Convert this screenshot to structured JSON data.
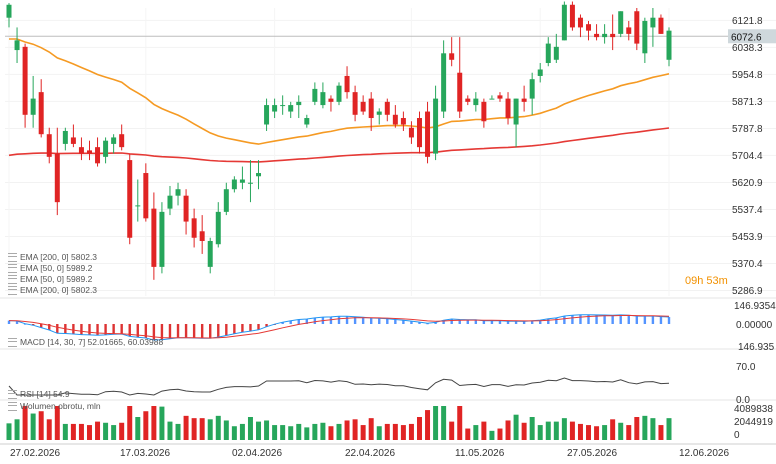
{
  "chart_data": {
    "type": "candlestick",
    "instrument_last_price": "6072.6",
    "countdown": "09h 53m",
    "price_axis_ticks": [
      "6121.8",
      "6038.3",
      "5954.8",
      "5871.3",
      "5787.8",
      "5704.4",
      "5620.9",
      "5537.4",
      "5453.9",
      "5370.4",
      "5286.9"
    ],
    "price_range": [
      5286.9,
      6160
    ],
    "date_labels": [
      "27.02.2026",
      "17.03.2026",
      "02.04.2026",
      "22.04.2026",
      "11.05.2026",
      "27.05.2026",
      "12.06.2026"
    ],
    "candles": [
      {
        "o": 6130,
        "h": 6175,
        "l": 6100,
        "c": 6170
      },
      {
        "o": 6030,
        "h": 6100,
        "l": 5990,
        "c": 6060
      },
      {
        "o": 6040,
        "h": 6050,
        "l": 5790,
        "c": 5830
      },
      {
        "o": 5830,
        "h": 5950,
        "l": 5790,
        "c": 5880
      },
      {
        "o": 5900,
        "h": 5940,
        "l": 5760,
        "c": 5770
      },
      {
        "o": 5770,
        "h": 5790,
        "l": 5680,
        "c": 5700
      },
      {
        "o": 5710,
        "h": 5790,
        "l": 5520,
        "c": 5560
      },
      {
        "o": 5740,
        "h": 5790,
        "l": 5720,
        "c": 5780
      },
      {
        "o": 5760,
        "h": 5800,
        "l": 5730,
        "c": 5740
      },
      {
        "o": 5730,
        "h": 5760,
        "l": 5690,
        "c": 5710
      },
      {
        "o": 5720,
        "h": 5750,
        "l": 5690,
        "c": 5710
      },
      {
        "o": 5730,
        "h": 5760,
        "l": 5670,
        "c": 5680
      },
      {
        "o": 5700,
        "h": 5760,
        "l": 5680,
        "c": 5750
      },
      {
        "o": 5740,
        "h": 5770,
        "l": 5710,
        "c": 5760
      },
      {
        "o": 5770,
        "h": 5800,
        "l": 5720,
        "c": 5730
      },
      {
        "o": 5690,
        "h": 5710,
        "l": 5430,
        "c": 5450
      },
      {
        "o": 5550,
        "h": 5630,
        "l": 5500,
        "c": 5550
      },
      {
        "o": 5650,
        "h": 5680,
        "l": 5500,
        "c": 5510
      },
      {
        "o": 5540,
        "h": 5590,
        "l": 5320,
        "c": 5360
      },
      {
        "o": 5360,
        "h": 5560,
        "l": 5340,
        "c": 5530
      },
      {
        "o": 5540,
        "h": 5610,
        "l": 5520,
        "c": 5580
      },
      {
        "o": 5580,
        "h": 5620,
        "l": 5550,
        "c": 5600
      },
      {
        "o": 5580,
        "h": 5600,
        "l": 5460,
        "c": 5500
      },
      {
        "o": 5510,
        "h": 5540,
        "l": 5420,
        "c": 5450
      },
      {
        "o": 5470,
        "h": 5520,
        "l": 5400,
        "c": 5440
      },
      {
        "o": 5360,
        "h": 5450,
        "l": 5340,
        "c": 5440
      },
      {
        "o": 5430,
        "h": 5560,
        "l": 5420,
        "c": 5530
      },
      {
        "o": 5530,
        "h": 5620,
        "l": 5520,
        "c": 5600
      },
      {
        "o": 5600,
        "h": 5640,
        "l": 5590,
        "c": 5630
      },
      {
        "o": 5620,
        "h": 5670,
        "l": 5600,
        "c": 5630
      },
      {
        "o": 5620,
        "h": 5690,
        "l": 5560,
        "c": 5620
      },
      {
        "o": 5640,
        "h": 5690,
        "l": 5600,
        "c": 5650
      },
      {
        "o": 5800,
        "h": 5880,
        "l": 5780,
        "c": 5860
      },
      {
        "o": 5840,
        "h": 5880,
        "l": 5820,
        "c": 5860
      },
      {
        "o": 5860,
        "h": 5890,
        "l": 5830,
        "c": 5860
      },
      {
        "o": 5840,
        "h": 5870,
        "l": 5820,
        "c": 5860
      },
      {
        "o": 5860,
        "h": 5890,
        "l": 5820,
        "c": 5870
      },
      {
        "o": 5800,
        "h": 5830,
        "l": 5790,
        "c": 5820
      },
      {
        "o": 5870,
        "h": 5930,
        "l": 5860,
        "c": 5910
      },
      {
        "o": 5860,
        "h": 5930,
        "l": 5850,
        "c": 5900
      },
      {
        "o": 5880,
        "h": 5890,
        "l": 5840,
        "c": 5870
      },
      {
        "o": 5870,
        "h": 5930,
        "l": 5860,
        "c": 5920
      },
      {
        "o": 5950,
        "h": 5980,
        "l": 5880,
        "c": 5900
      },
      {
        "o": 5900,
        "h": 5920,
        "l": 5810,
        "c": 5830
      },
      {
        "o": 5870,
        "h": 5890,
        "l": 5830,
        "c": 5840
      },
      {
        "o": 5880,
        "h": 5900,
        "l": 5780,
        "c": 5820
      },
      {
        "o": 5830,
        "h": 5850,
        "l": 5800,
        "c": 5840
      },
      {
        "o": 5870,
        "h": 5880,
        "l": 5810,
        "c": 5830
      },
      {
        "o": 5830,
        "h": 5860,
        "l": 5790,
        "c": 5800
      },
      {
        "o": 5820,
        "h": 5840,
        "l": 5780,
        "c": 5800
      },
      {
        "o": 5790,
        "h": 5810,
        "l": 5740,
        "c": 5760
      },
      {
        "o": 5820,
        "h": 5840,
        "l": 5710,
        "c": 5730
      },
      {
        "o": 5840,
        "h": 5870,
        "l": 5680,
        "c": 5700
      },
      {
        "o": 5710,
        "h": 5920,
        "l": 5690,
        "c": 5880
      },
      {
        "o": 5840,
        "h": 6060,
        "l": 5820,
        "c": 6020
      },
      {
        "o": 6020,
        "h": 6070,
        "l": 5980,
        "c": 6000
      },
      {
        "o": 5960,
        "h": 6070,
        "l": 5820,
        "c": 5840
      },
      {
        "o": 5880,
        "h": 5890,
        "l": 5860,
        "c": 5870
      },
      {
        "o": 5860,
        "h": 5900,
        "l": 5840,
        "c": 5880
      },
      {
        "o": 5870,
        "h": 5880,
        "l": 5790,
        "c": 5810
      },
      {
        "o": 5880,
        "h": 5890,
        "l": 5880,
        "c": 5880
      },
      {
        "o": 5890,
        "h": 5900,
        "l": 5870,
        "c": 5880
      },
      {
        "o": 5880,
        "h": 5900,
        "l": 5800,
        "c": 5820
      },
      {
        "o": 5800,
        "h": 5880,
        "l": 5730,
        "c": 5880
      },
      {
        "o": 5880,
        "h": 5920,
        "l": 5840,
        "c": 5870
      },
      {
        "o": 5880,
        "h": 5960,
        "l": 5830,
        "c": 5940
      },
      {
        "o": 5950,
        "h": 5990,
        "l": 5930,
        "c": 5970
      },
      {
        "o": 5990,
        "h": 6070,
        "l": 5980,
        "c": 6050
      },
      {
        "o": 6000,
        "h": 6080,
        "l": 5990,
        "c": 6040
      },
      {
        "o": 6060,
        "h": 6180,
        "l": 6060,
        "c": 6170
      },
      {
        "o": 6170,
        "h": 6180,
        "l": 6090,
        "c": 6100
      },
      {
        "o": 6130,
        "h": 6140,
        "l": 6070,
        "c": 6100
      },
      {
        "o": 6110,
        "h": 6120,
        "l": 6060,
        "c": 6090
      },
      {
        "o": 6080,
        "h": 6110,
        "l": 6060,
        "c": 6070
      },
      {
        "o": 6070,
        "h": 6110,
        "l": 6050,
        "c": 6080
      },
      {
        "o": 6080,
        "h": 6140,
        "l": 6030,
        "c": 6070
      },
      {
        "o": 6080,
        "h": 6150,
        "l": 6070,
        "c": 6150
      },
      {
        "o": 6100,
        "h": 6120,
        "l": 6060,
        "c": 6080
      },
      {
        "o": 6150,
        "h": 6160,
        "l": 6030,
        "c": 6050
      },
      {
        "o": 6020,
        "h": 6130,
        "l": 5990,
        "c": 6120
      },
      {
        "o": 6100,
        "h": 6160,
        "l": 6040,
        "c": 6130
      },
      {
        "o": 6130,
        "h": 6140,
        "l": 6080,
        "c": 6080
      },
      {
        "o": 6000,
        "h": 6100,
        "l": 5980,
        "c": 6090
      }
    ],
    "ema_lines": [
      {
        "name": "EMA [200, 0]",
        "value": "5802.3",
        "color": "#e53935"
      },
      {
        "name": "EMA [50, 0]",
        "value": "5989.2",
        "color": "#f59a23"
      }
    ],
    "indicators": {
      "legend_entries": [
        "EMA [200, 0] 5802.3",
        "EMA [50, 0] 5989.2",
        "EMA [50, 0] 5989.2",
        "EMA [200, 0] 5802.3"
      ],
      "macd": {
        "label": "MACD [14, 30, 7] 52.01665, 60.03988",
        "ticks": [
          "146.9354",
          "0.00000",
          "146.935"
        ]
      },
      "rsi": {
        "label": "RSI [14] 54.9",
        "ticks": [
          "70.0",
          "0.0"
        ]
      },
      "volume": {
        "label": "Wolumen obrotu, mln",
        "ticks": [
          "4089838",
          "2044919",
          "0"
        ]
      }
    },
    "colors": {
      "up": "#26a65b",
      "down": "#e02424",
      "ema50": "#f59a23",
      "ema200": "#e53935",
      "macd_pos": "#2979ff",
      "macd_neg": "#d50000"
    }
  }
}
